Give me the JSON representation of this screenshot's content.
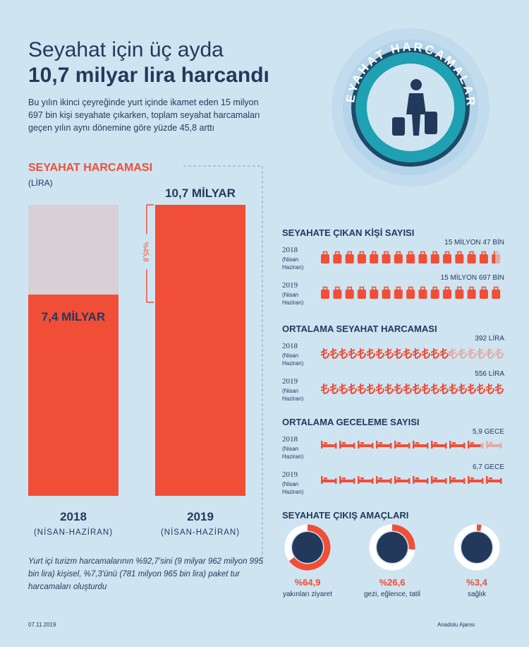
{
  "header": {
    "title_line1": "Seyahat için üç ayda",
    "title_line2": "10,7 milyar lira harcandı",
    "intro": "Bu yılın ikinci çeyreğinde yurt içinde ikamet eden 15 milyon 697 bin kişi seyahate çıkarken, toplam seyahat harcamaları geçen yılın aynı dönemine göre yüzde 45,8 arttı"
  },
  "badge": "SEYAHAT HARCAMALARI",
  "chart_data": [
    {
      "type": "bar",
      "title": "SEYAHAT HARCAMASI",
      "subtitle": "(LİRA)",
      "categories": [
        "2018",
        "2019"
      ],
      "category_notes": [
        "(NİSAN-HAZİRAN)",
        "(NİSAN-HAZİRAN)"
      ],
      "values": [
        7.4,
        10.7
      ],
      "value_labels": [
        "7,4 MİLYAR",
        "10,7 MİLYAR"
      ],
      "color": "#f04e37",
      "annotation": "%45,8"
    },
    {
      "type": "pictogram",
      "icon": "suitcase",
      "title": "SEYAHATE ÇIKAN KİŞİ SAYISI",
      "categories": [
        "2018",
        "2019"
      ],
      "category_notes": [
        "(Nisan Haziran)",
        "(Nisan Haziran)"
      ],
      "values": [
        15047000,
        15697000
      ],
      "value_labels": [
        "15 MİLYON 47 BİN",
        "15 MİLYON 697 BİN"
      ],
      "color": "#f04e37"
    },
    {
      "type": "pictogram",
      "icon": "lira",
      "title": "ORTALAMA SEYAHAT HARCAMASI",
      "categories": [
        "2018",
        "2019"
      ],
      "category_notes": [
        "(Nisan Haziran)",
        "(Nisan Haziran)"
      ],
      "values": [
        392,
        556
      ],
      "value_labels": [
        "392 LİRA",
        "556 LİRA"
      ],
      "color": "#f04e37"
    },
    {
      "type": "pictogram",
      "icon": "bed",
      "title": "ORTALAMA GECELEME SAYISI",
      "categories": [
        "2018",
        "2019"
      ],
      "category_notes": [
        "(Nisan Haziran)",
        "(Nisan Haziran)"
      ],
      "values": [
        5.9,
        6.7
      ],
      "value_labels": [
        "5,9 GECE",
        "6,7 GECE"
      ],
      "color": "#f04e37"
    },
    {
      "type": "donut",
      "title": "SEYAHATE ÇIKIŞ AMAÇLARI",
      "categories": [
        "yakınları ziyaret",
        "gezi, eğlence, tatil",
        "sağlık"
      ],
      "values": [
        64.9,
        26.6,
        3.4
      ],
      "value_labels": [
        "%64,9",
        "%26,6",
        "%3,4"
      ],
      "color": "#f04e37"
    }
  ],
  "footnote": "Yurt içi turizm harcamalarının %92,7'sini (9 milyar 962 milyon 995 bin lira) kişisel, %7,3'ünü (781 milyon 965 bin lira) paket tur harcamaları oluşturdu",
  "date": "07.11.2019",
  "source": "Anadolu Ajansı"
}
